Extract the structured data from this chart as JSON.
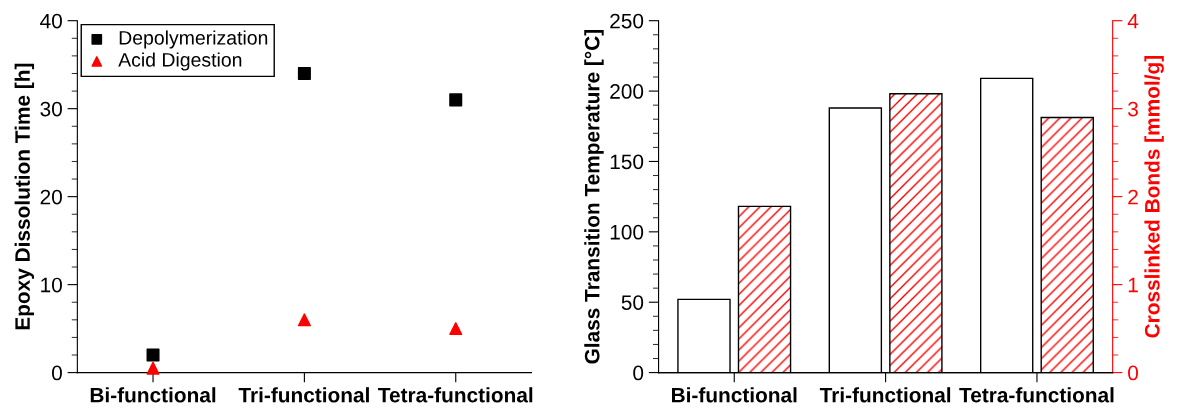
{
  "chart_data": [
    {
      "type": "scatter",
      "ylabel": "Epoxy Dissolution Time [h]",
      "categories": [
        "Bi-functional",
        "Tri-functional",
        "Tetra-functional"
      ],
      "ylim": [
        0,
        40
      ],
      "yticks": [
        0,
        10,
        20,
        30,
        40
      ],
      "legend": "top left",
      "grid": false,
      "series": [
        {
          "name": "Depolymerization",
          "color": "#000000",
          "marker": "square",
          "values": [
            2,
            34,
            31
          ]
        },
        {
          "name": "Acid Digestion",
          "color": "#ff0000",
          "marker": "triangle",
          "values": [
            0.5,
            6,
            5
          ]
        }
      ]
    },
    {
      "type": "bar",
      "ylabel": "Glass Transition Temperature [°C]",
      "y2label": "Crosslinked Bonds [mmol/g]",
      "categories": [
        "Bi-functional",
        "Tri-functional",
        "Tetra-functional"
      ],
      "ylim": [
        0,
        250
      ],
      "yticks": [
        0,
        50,
        100,
        150,
        200,
        250
      ],
      "y2lim": [
        0,
        4
      ],
      "y2ticks": [
        0,
        1,
        2,
        3,
        4
      ],
      "grid": false,
      "legend": false,
      "series": [
        {
          "color": "#ffffff",
          "values": [
            52,
            188,
            209
          ]
        },
        {
          "color": "#ff0000",
          "axis": "y2",
          "values": [
            1.89,
            3.17,
            2.9
          ]
        }
      ]
    }
  ]
}
